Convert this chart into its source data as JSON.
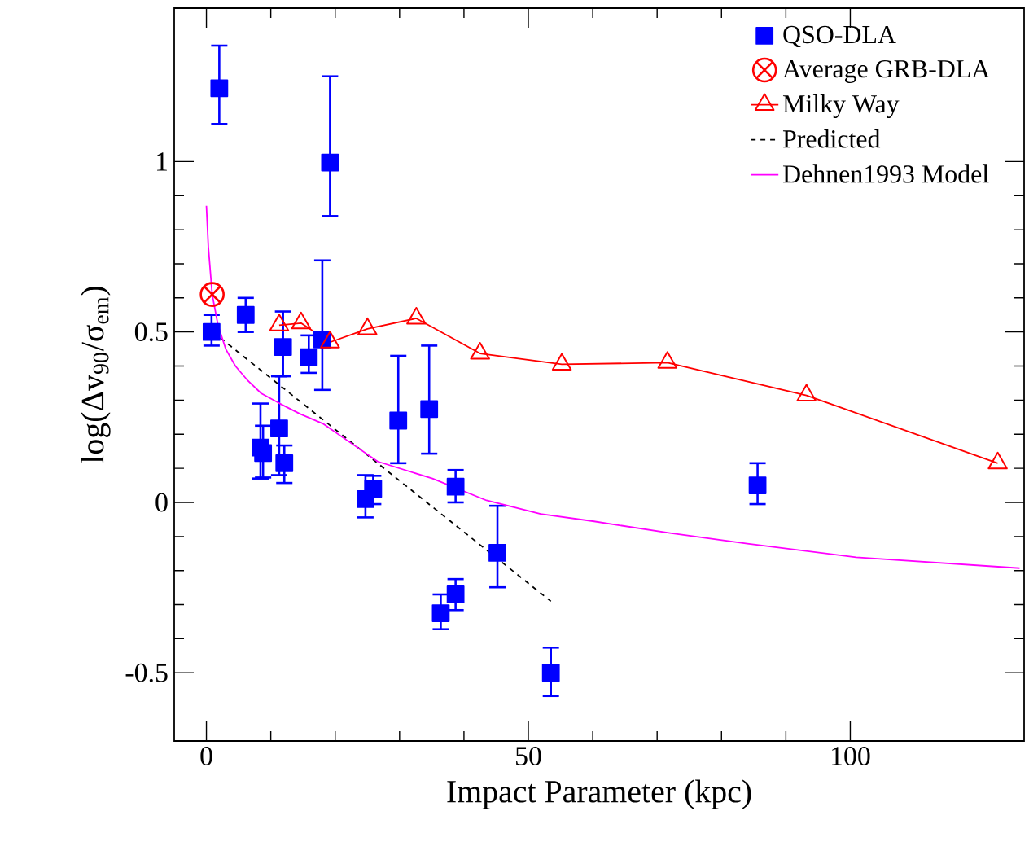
{
  "chart_data": {
    "type": "scatter",
    "xlabel": "Impact Parameter (kpc)",
    "ylabel": "log(Δv$_{90}$/σ$_{em}$)",
    "xlim": [
      -5,
      127
    ],
    "ylim": [
      -0.7,
      1.45
    ],
    "xticks": [
      0,
      50,
      100
    ],
    "yticks": [
      -0.5,
      0,
      0.5,
      1
    ],
    "legend": "top right",
    "series": [
      {
        "name": "QSO-DLA",
        "type": "scatter",
        "marker": "square",
        "color": "#0000ff",
        "x": [
          2.0,
          19.2,
          0.8,
          6.1,
          11.9,
          15.9,
          18.0,
          8.4,
          8.8,
          11.3,
          12.1,
          24.7,
          25.9,
          29.8,
          34.6,
          38.7,
          36.4,
          38.7,
          45.2,
          53.5,
          85.6
        ],
        "values": [
          1.215,
          0.997,
          0.5,
          0.55,
          0.456,
          0.426,
          0.478,
          0.161,
          0.145,
          0.217,
          0.115,
          0.01,
          0.04,
          0.24,
          0.274,
          0.046,
          -0.325,
          -0.27,
          -0.148,
          -0.5,
          0.05
        ],
        "errors": [
          [
            1.11,
            1.34
          ],
          [
            0.84,
            1.25
          ],
          [
            0.46,
            0.55
          ],
          [
            0.5,
            0.6
          ],
          [
            0.37,
            0.56
          ],
          [
            0.38,
            0.49
          ],
          [
            0.33,
            0.71
          ],
          [
            0.07,
            0.29
          ],
          [
            0.073,
            0.225
          ],
          [
            0.08,
            0.37
          ],
          [
            0.057,
            0.167
          ],
          [
            -0.044,
            0.08
          ],
          [
            -0.005,
            0.078
          ],
          [
            0.115,
            0.43
          ],
          [
            0.143,
            0.46
          ],
          [
            0.0,
            0.095
          ],
          [
            -0.372,
            -0.27
          ],
          [
            -0.316,
            -0.225
          ],
          [
            -0.249,
            -0.01
          ],
          [
            -0.568,
            -0.426
          ],
          [
            -0.005,
            0.115
          ]
        ]
      },
      {
        "name": "Average GRB-DLA",
        "type": "scatter",
        "marker": "cross",
        "color": "#ff0000",
        "x": [
          0.9
        ],
        "values": [
          0.61
        ]
      },
      {
        "name": "Milky Way",
        "type": "line",
        "marker": "triangle",
        "line_style": "solid",
        "color": "#ff0000",
        "x": [
          11.3,
          14.7,
          19.2,
          25.0,
          32.6,
          42.5,
          55.2,
          71.6,
          93.2,
          122.9
        ],
        "values": [
          0.52,
          0.526,
          0.47,
          0.509,
          0.54,
          0.437,
          0.405,
          0.41,
          0.314,
          0.115
        ]
      },
      {
        "name": "Predicted",
        "type": "line",
        "marker": "none",
        "line_style": "dashed",
        "color": "#000000",
        "x": [
          1,
          53.5
        ],
        "values": [
          0.5,
          -0.29
        ]
      },
      {
        "name": "Dehnen1993 Model",
        "type": "line",
        "marker": "none",
        "line_style": "solid",
        "color": "#ff00ff",
        "x": [
          0,
          0.3,
          0.9,
          1.8,
          3,
          4.5,
          6.3,
          8.5,
          11.4,
          14.5,
          18.2,
          22,
          26.6,
          35.1,
          43.5,
          51.9,
          60,
          72,
          84,
          100.9,
          126.3
        ],
        "values": [
          0.87,
          0.75,
          0.61,
          0.52,
          0.45,
          0.4,
          0.36,
          0.32,
          0.29,
          0.26,
          0.23,
          0.18,
          0.12,
          0.07,
          0.006,
          -0.034,
          -0.055,
          -0.09,
          -0.121,
          -0.161,
          -0.193
        ]
      }
    ]
  }
}
